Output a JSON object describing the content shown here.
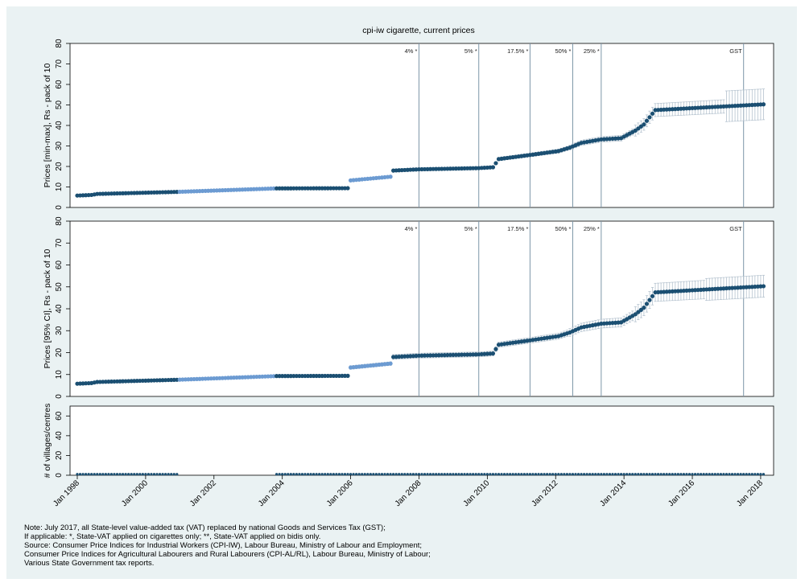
{
  "title": "cpi-iw cigarette, current prices",
  "panels": [
    {
      "ylabel": "Prices [min-max], Rs - pack of 10",
      "yticks": [
        0,
        10,
        20,
        30,
        40,
        50,
        60,
        70,
        80
      ]
    },
    {
      "ylabel": "Prices [95% CI], Rs - pack of 10",
      "yticks": [
        0,
        10,
        20,
        30,
        40,
        50,
        60,
        70,
        80
      ]
    },
    {
      "ylabel": "# of villages/centres",
      "yticks": [
        0,
        20,
        40,
        60
      ]
    }
  ],
  "x_ticks": [
    "Jan 1998",
    "Jan 2000",
    "Jan 2002",
    "Jan 2004",
    "Jan 2006",
    "Jan 2008",
    "Jan 2010",
    "Jan 2012",
    "Jan 2014",
    "Jan 2016",
    "Jan 2018"
  ],
  "tax_events": [
    {
      "label": "4% *",
      "date": "2008-01"
    },
    {
      "label": "5% *",
      "date": "2009-10"
    },
    {
      "label": "17.5% *",
      "date": "2011-04"
    },
    {
      "label": "50% *",
      "date": "2012-07"
    },
    {
      "label": "25% *",
      "date": "2013-05"
    },
    {
      "label": "GST",
      "date": "2017-07"
    }
  ],
  "notes": [
    "Note: July 2017, all State-level value-added tax (VAT) replaced by national Goods and Services Tax (GST);",
    "If applicable: *, State-VAT applied on cigarettes only; **, State-VAT applied on bidis only.",
    "Source: Consumer Price Indices for Industrial Workers (CPI-IW), Labour Bureau, Ministry of Labour and Employment;",
    "Consumer Price Indices for Agricultural Labourers and Rural Labourers (CPI-AL/RL), Labour Bureau, Ministry of Labour;",
    "Various State Government tax reports."
  ],
  "colors": {
    "background": "#eaf2f3",
    "observed": "#1b4f72",
    "interpolated": "#6c9bd2",
    "event_line": "#7d96a8"
  },
  "chart_data": {
    "type": "scatter",
    "title": "cpi-iw cigarette, current prices",
    "x_range": [
      "1998-01",
      "2018-03"
    ],
    "price_breakpoints": [
      [
        "1998-01",
        5.8
      ],
      [
        "1998-06",
        6.1
      ],
      [
        "1998-08",
        6.6
      ],
      [
        "2000-12",
        7.6
      ],
      [
        "2003-11",
        9.3
      ],
      [
        "2005-12",
        9.4
      ],
      [
        "2006-01",
        13.2
      ],
      [
        "2007-03",
        15.0
      ],
      [
        "2007-04",
        18.0
      ],
      [
        "2008-01",
        18.6
      ],
      [
        "2009-10",
        19.2
      ],
      [
        "2010-03",
        19.6
      ],
      [
        "2010-05",
        23.6
      ],
      [
        "2011-04",
        25.6
      ],
      [
        "2012-02",
        27.5
      ],
      [
        "2012-06",
        29.2
      ],
      [
        "2012-10",
        31.5
      ],
      [
        "2013-05",
        33.2
      ],
      [
        "2013-12",
        33.8
      ],
      [
        "2014-05",
        37.5
      ],
      [
        "2014-08",
        40.5
      ],
      [
        "2014-12",
        47.5
      ],
      [
        "2015-07",
        48.0
      ],
      [
        "2016-11",
        49.2
      ],
      [
        "2018-02",
        50.3
      ]
    ],
    "interpolated_periods": [
      [
        "2001-01",
        "2003-10"
      ],
      [
        "2006-01",
        "2007-03"
      ]
    ],
    "series": [
      {
        "name": "observed",
        "period": [
          "1998-01",
          "2000-12"
        ]
      },
      {
        "name": "interpolated",
        "period": [
          "2001-01",
          "2003-10"
        ]
      },
      {
        "name": "observed",
        "period": [
          "2003-11",
          "2005-12"
        ]
      },
      {
        "name": "interpolated",
        "period": [
          "2006-01",
          "2007-03"
        ]
      },
      {
        "name": "observed",
        "period": [
          "2007-04",
          "2018-02"
        ]
      }
    ],
    "count_series": {
      "segments": [
        {
          "period": [
            "1998-01",
            "2000-12"
          ],
          "value": 1
        },
        {
          "period": [
            "2003-11",
            "2018-02"
          ],
          "value": 1
        }
      ]
    },
    "panel1_ylim": [
      0,
      80
    ],
    "panel2_ylim": [
      0,
      80
    ],
    "panel3_ylim": [
      0,
      70
    ],
    "grid": false,
    "legend": "none"
  }
}
